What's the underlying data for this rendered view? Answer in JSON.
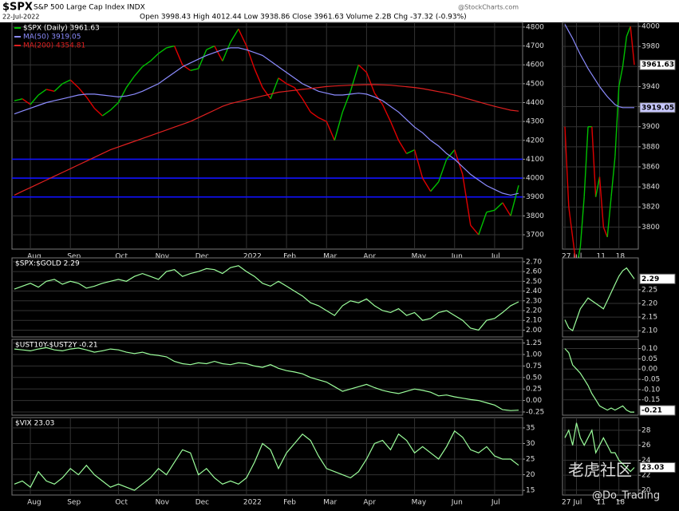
{
  "header": {
    "symbol": "$SPX",
    "name": "S&P 500 Large Cap Index INDX",
    "date": "22-Jul-2022",
    "quote": "Open 3998.43 High 4012.44 Low 3938.86 Close 3961.63 Volume 2.2B Chg -37.32 (-0.93%)",
    "source": "@StockCharts.com"
  },
  "watermark": {
    "brand": "老虎社区",
    "user": "@Do_Trading"
  },
  "chart_data": [
    {
      "type": "line",
      "categories": [
        null,
        null,
        "Aug",
        null,
        null,
        null,
        null,
        "Sep",
        null,
        null,
        null,
        null,
        null,
        "Oct",
        null,
        null,
        null,
        null,
        "Nov",
        null,
        null,
        null,
        null,
        "Dec",
        null,
        null,
        null,
        null,
        null,
        "2022",
        null,
        null,
        null,
        null,
        "Feb",
        null,
        null,
        null,
        null,
        "Mar",
        null,
        null,
        null,
        null,
        "Apr",
        null,
        null,
        null,
        null,
        null,
        "May",
        null,
        null,
        null,
        null,
        "Jun",
        null,
        null,
        null,
        null,
        "Jul",
        null,
        null,
        null
      ],
      "series": [
        {
          "name": "$SPX (Daily) 3961.63",
          "up_color": "#00c000",
          "down_color": "#e00000",
          "values": [
            4410,
            4420,
            4390,
            4440,
            4470,
            4460,
            4500,
            4520,
            4480,
            4430,
            4370,
            4330,
            4360,
            4400,
            4480,
            4540,
            4590,
            4620,
            4660,
            4690,
            4700,
            4600,
            4570,
            4580,
            4680,
            4700,
            4620,
            4720,
            4790,
            4700,
            4580,
            4480,
            4420,
            4530,
            4500,
            4480,
            4420,
            4350,
            4320,
            4300,
            4200,
            4350,
            4460,
            4600,
            4560,
            4450,
            4390,
            4300,
            4200,
            4130,
            4150,
            4000,
            3930,
            3980,
            4100,
            4150,
            4020,
            3750,
            3700,
            3820,
            3830,
            3870,
            3800,
            3961.63
          ]
        },
        {
          "name": "MA(50) 3919.05",
          "color": "#8c8cff",
          "values": [
            4340,
            4355,
            4370,
            4385,
            4400,
            4410,
            4420,
            4430,
            4440,
            4445,
            4445,
            4440,
            4435,
            4430,
            4435,
            4445,
            4460,
            4480,
            4500,
            4530,
            4560,
            4590,
            4610,
            4630,
            4650,
            4665,
            4680,
            4690,
            4690,
            4680,
            4665,
            4650,
            4620,
            4590,
            4560,
            4530,
            4500,
            4480,
            4460,
            4450,
            4440,
            4440,
            4445,
            4450,
            4445,
            4430,
            4410,
            4380,
            4350,
            4310,
            4270,
            4240,
            4200,
            4170,
            4130,
            4100,
            4060,
            4020,
            3990,
            3960,
            3940,
            3920,
            3910,
            3919.05
          ]
        },
        {
          "name": "MA(200) 4354.81",
          "color": "#e02020",
          "values": [
            3910,
            3930,
            3950,
            3970,
            3990,
            4010,
            4030,
            4050,
            4070,
            4090,
            4110,
            4130,
            4150,
            4165,
            4180,
            4195,
            4210,
            4225,
            4240,
            4255,
            4270,
            4285,
            4300,
            4320,
            4340,
            4360,
            4380,
            4395,
            4405,
            4415,
            4425,
            4435,
            4445,
            4455,
            4460,
            4465,
            4470,
            4475,
            4480,
            4485,
            4488,
            4490,
            4492,
            4494,
            4495,
            4495,
            4494,
            4492,
            4488,
            4484,
            4480,
            4474,
            4466,
            4458,
            4450,
            4440,
            4428,
            4416,
            4404,
            4392,
            4380,
            4370,
            4360,
            4354.81
          ]
        }
      ],
      "hlines": [
        4100,
        4000,
        3900
      ],
      "hline_color": "#1010ff",
      "ylim": [
        3624,
        4825
      ],
      "yticks": [
        3700,
        3800,
        3900,
        4000,
        4100,
        4200,
        4300,
        4400,
        4500,
        4600,
        4700,
        4800
      ],
      "grid": true
    },
    {
      "type": "line",
      "title": "$SPX:$GOLD 2.29",
      "series": [
        {
          "color": "#9cff9c",
          "values": [
            2.42,
            2.45,
            2.48,
            2.44,
            2.5,
            2.52,
            2.47,
            2.5,
            2.48,
            2.43,
            2.45,
            2.48,
            2.5,
            2.52,
            2.5,
            2.55,
            2.58,
            2.55,
            2.52,
            2.6,
            2.62,
            2.55,
            2.58,
            2.6,
            2.63,
            2.62,
            2.58,
            2.64,
            2.66,
            2.6,
            2.55,
            2.48,
            2.45,
            2.5,
            2.45,
            2.4,
            2.35,
            2.28,
            2.25,
            2.2,
            2.15,
            2.25,
            2.3,
            2.28,
            2.32,
            2.25,
            2.2,
            2.18,
            2.22,
            2.15,
            2.18,
            2.1,
            2.12,
            2.18,
            2.2,
            2.15,
            2.1,
            2.02,
            2.0,
            2.1,
            2.12,
            2.18,
            2.25,
            2.29
          ]
        }
      ],
      "ylim": [
        1.93,
        2.74
      ],
      "yticks": [
        {
          "value": 2.0,
          "label": "2.00"
        },
        {
          "value": 2.1,
          "label": "2.10"
        },
        {
          "value": 2.2,
          "label": "2.20"
        },
        {
          "value": 2.3,
          "label": "2.30"
        },
        {
          "value": 2.4,
          "label": "2.40"
        },
        {
          "value": 2.5,
          "label": "2.50"
        },
        {
          "value": 2.6,
          "label": "2.60"
        },
        {
          "value": 2.7,
          "label": "2.70"
        }
      ],
      "grid": true
    },
    {
      "type": "line",
      "title": "$UST10Y-$UST2Y -0.21",
      "series": [
        {
          "color": "#9cff9c",
          "values": [
            1.12,
            1.1,
            1.08,
            1.12,
            1.15,
            1.1,
            1.08,
            1.12,
            1.14,
            1.1,
            1.05,
            1.08,
            1.12,
            1.1,
            1.05,
            1.02,
            1.05,
            1.0,
            0.98,
            0.95,
            0.85,
            0.8,
            0.78,
            0.82,
            0.8,
            0.85,
            0.8,
            0.78,
            0.82,
            0.8,
            0.75,
            0.72,
            0.78,
            0.7,
            0.65,
            0.62,
            0.58,
            0.5,
            0.45,
            0.4,
            0.3,
            0.2,
            0.25,
            0.3,
            0.35,
            0.28,
            0.22,
            0.18,
            0.15,
            0.2,
            0.25,
            0.22,
            0.18,
            0.1,
            0.12,
            0.08,
            0.05,
            0.02,
            0.0,
            -0.05,
            -0.1,
            -0.2,
            -0.22,
            -0.21
          ]
        }
      ],
      "ylim": [
        -0.32,
        1.33
      ],
      "yticks": [
        -0.25,
        0.25,
        {
          "value": 0,
          "label": "0.00"
        },
        {
          "value": 0.5,
          "label": "0.50"
        },
        0.75,
        {
          "value": 1,
          "label": "1.00"
        },
        1.25
      ],
      "grid": true
    },
    {
      "type": "line",
      "title": "$VIX 23.03",
      "categories": [
        null,
        null,
        "Aug",
        null,
        null,
        null,
        null,
        "Sep",
        null,
        null,
        null,
        null,
        null,
        "Oct",
        null,
        null,
        null,
        null,
        "Nov",
        null,
        null,
        null,
        null,
        "Dec",
        null,
        null,
        null,
        null,
        null,
        "2022",
        null,
        null,
        null,
        null,
        "Feb",
        null,
        null,
        null,
        null,
        "Mar",
        null,
        null,
        null,
        null,
        "Apr",
        null,
        null,
        null,
        null,
        null,
        "May",
        null,
        null,
        null,
        null,
        "Jun",
        null,
        null,
        null,
        null,
        "Jul",
        null,
        null,
        null
      ],
      "series": [
        {
          "color": "#9cff9c",
          "values": [
            17,
            18,
            16,
            21,
            18,
            17,
            19,
            22,
            20,
            23,
            20,
            18,
            16,
            17,
            16,
            15,
            17,
            19,
            22,
            20,
            24,
            28,
            27,
            20,
            22,
            19,
            17,
            18,
            17,
            19,
            24,
            30,
            28,
            22,
            27,
            30,
            33,
            31,
            26,
            22,
            21,
            20,
            19,
            21,
            25,
            30,
            31,
            28,
            33,
            31,
            27,
            29,
            27,
            25,
            29,
            34,
            32,
            28,
            27,
            29,
            26,
            25,
            25,
            23.03
          ]
        }
      ],
      "ylim": [
        13.5,
        38.3
      ],
      "yticks": [
        15,
        20,
        25,
        30,
        35
      ],
      "grid": true
    },
    {
      "type": "line",
      "categories": [
        "27",
        null,
        null,
        "Jul",
        null,
        null,
        null,
        null,
        null,
        "11",
        null,
        null,
        null,
        null,
        "18",
        null,
        null,
        null,
        null
      ],
      "series": [
        {
          "up_color": "#00c000",
          "down_color": "#e00000",
          "last_label": "3961.63",
          "values": [
            3900,
            3820,
            3790,
            3760,
            3780,
            3830,
            3900,
            3900,
            3830,
            3850,
            3800,
            3790,
            3830,
            3870,
            3940,
            3960,
            3990,
            4000,
            3961.63
          ]
        },
        {
          "color": "#8c8cff",
          "last_label": "3919.05",
          "values": [
            4002,
            3995,
            3988,
            3980,
            3972,
            3965,
            3958,
            3952,
            3946,
            3940,
            3935,
            3930,
            3926,
            3922,
            3920,
            3919,
            3919,
            3919,
            3919.05
          ]
        }
      ],
      "ylim": [
        3778,
        4004
      ],
      "yticks": [
        3800,
        3820,
        3840,
        3860,
        3880,
        3900,
        3920,
        3940,
        3960,
        3980,
        4000
      ],
      "grid": true
    },
    {
      "type": "line",
      "series": [
        {
          "color": "#9cff9c",
          "last_label": "2.29",
          "values": [
            2.14,
            2.11,
            2.1,
            2.14,
            2.18,
            2.2,
            2.22,
            2.21,
            2.2,
            2.19,
            2.18,
            2.21,
            2.24,
            2.27,
            2.3,
            2.32,
            2.33,
            2.31,
            2.29
          ]
        }
      ],
      "ylim": [
        2.077,
        2.367
      ],
      "yticks": [
        {
          "value": 2.1,
          "label": "2.10"
        },
        2.15,
        {
          "value": 2.2,
          "label": "2.20"
        },
        2.25
      ],
      "grid": true
    },
    {
      "type": "line",
      "series": [
        {
          "color": "#9cff9c",
          "last_label": "-0.21",
          "values": [
            0.1,
            0.08,
            0.02,
            0.0,
            -0.02,
            -0.05,
            -0.08,
            -0.12,
            -0.15,
            -0.18,
            -0.19,
            -0.2,
            -0.19,
            -0.2,
            -0.19,
            -0.18,
            -0.2,
            -0.21,
            -0.21
          ]
        }
      ],
      "ylim": [
        -0.225,
        0.145
      ],
      "yticks": [
        -0.15,
        {
          "value": -0.1,
          "label": "-0.10"
        },
        -0.05,
        {
          "value": 0,
          "label": "0.00"
        },
        0.05,
        {
          "value": 0.1,
          "label": "0.10"
        }
      ],
      "grid": true
    },
    {
      "type": "line",
      "categories": [
        "27",
        null,
        null,
        "Jul",
        null,
        null,
        null,
        null,
        null,
        "11",
        null,
        null,
        null,
        null,
        "18",
        null,
        null,
        null,
        null
      ],
      "series": [
        {
          "color": "#9cff9c",
          "last_label": "23.03",
          "values": [
            27,
            28,
            26,
            29,
            27,
            26,
            27,
            28,
            25,
            26,
            27,
            26,
            25,
            25,
            24,
            23.5,
            23,
            22.5,
            23.03
          ]
        }
      ],
      "ylim": [
        19.35,
        29.7
      ],
      "yticks": [
        20,
        22,
        24,
        26,
        28
      ],
      "grid": true
    }
  ]
}
